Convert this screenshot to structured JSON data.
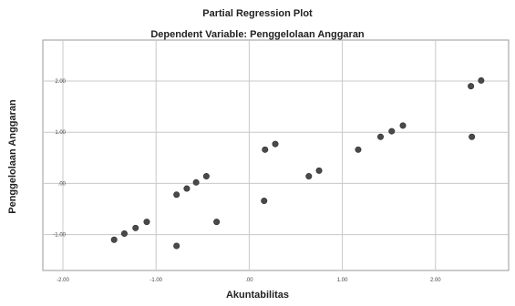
{
  "chart_data": {
    "type": "scatter",
    "title": "Partial Regression Plot",
    "subtitle": "Dependent Variable: Penggelolaan Anggaran",
    "xlabel": "Akuntabilitas",
    "ylabel": "Penggelolaan Anggaran",
    "xlim": [
      -2.0,
      3.0
    ],
    "ylim": [
      -1.7,
      2.8
    ],
    "xticks": [
      -2.0,
      -1.0,
      0.0,
      1.0,
      2.0,
      3.0
    ],
    "xtick_labels": [
      "-2.00",
      "-1.00",
      ".00",
      "1.00",
      "2.00",
      "3.00"
    ],
    "yticks": [
      -1.0,
      0.0,
      1.0,
      2.0
    ],
    "ytick_labels": [
      "-1.00",
      ".00",
      "1.00",
      "2.00"
    ],
    "grid": true,
    "marker_color": "#4a4a4a",
    "grid_color": "#c8c8c8",
    "points": [
      {
        "x": -1.45,
        "y": -1.1
      },
      {
        "x": -1.34,
        "y": -0.98
      },
      {
        "x": -1.22,
        "y": -0.87
      },
      {
        "x": -1.1,
        "y": -0.75
      },
      {
        "x": -0.78,
        "y": -0.22
      },
      {
        "x": -0.67,
        "y": -0.1
      },
      {
        "x": -0.57,
        "y": 0.02
      },
      {
        "x": -0.46,
        "y": 0.14
      },
      {
        "x": -0.78,
        "y": -1.22
      },
      {
        "x": -0.35,
        "y": -0.75
      },
      {
        "x": 0.17,
        "y": 0.66
      },
      {
        "x": 0.28,
        "y": 0.77
      },
      {
        "x": 0.16,
        "y": -0.34
      },
      {
        "x": 0.64,
        "y": 0.14
      },
      {
        "x": 0.75,
        "y": 0.25
      },
      {
        "x": 1.17,
        "y": 0.66
      },
      {
        "x": 1.41,
        "y": 0.91
      },
      {
        "x": 1.53,
        "y": 1.02
      },
      {
        "x": 1.65,
        "y": 1.13
      },
      {
        "x": 2.38,
        "y": 1.9
      },
      {
        "x": 2.49,
        "y": 2.01
      },
      {
        "x": 2.39,
        "y": 0.91
      }
    ]
  }
}
